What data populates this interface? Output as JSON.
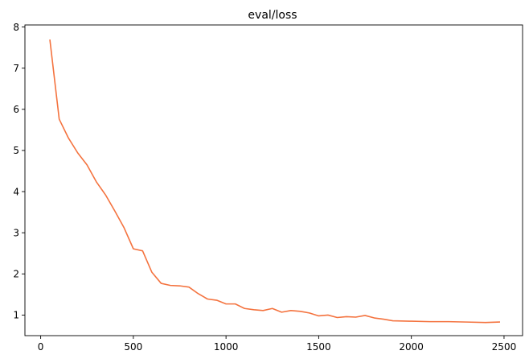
{
  "chart_data": {
    "type": "line",
    "title": "eval/loss",
    "xlabel": "",
    "ylabel": "",
    "xlim": [
      -85,
      2600
    ],
    "ylim": [
      0.5,
      8.05
    ],
    "x_ticks": [
      0,
      500,
      1000,
      1500,
      2000,
      2500
    ],
    "y_ticks": [
      1,
      2,
      3,
      4,
      5,
      6,
      7,
      8
    ],
    "grid": false,
    "legend": "none",
    "series": [
      {
        "color": "#f4733f",
        "x": [
          50,
          100,
          150,
          200,
          250,
          300,
          350,
          400,
          450,
          500,
          550,
          600,
          650,
          700,
          750,
          800,
          850,
          900,
          950,
          1000,
          1050,
          1100,
          1150,
          1200,
          1250,
          1300,
          1350,
          1400,
          1450,
          1500,
          1550,
          1600,
          1650,
          1700,
          1750,
          1800,
          1850,
          1900,
          2000,
          2100,
          2200,
          2300,
          2400,
          2475
        ],
        "y": [
          7.68,
          5.76,
          5.3,
          4.94,
          4.65,
          4.24,
          3.92,
          3.53,
          3.12,
          2.61,
          2.56,
          2.04,
          1.77,
          1.72,
          1.71,
          1.68,
          1.52,
          1.39,
          1.36,
          1.27,
          1.27,
          1.16,
          1.13,
          1.11,
          1.16,
          1.07,
          1.11,
          1.09,
          1.05,
          0.98,
          1.0,
          0.94,
          0.96,
          0.95,
          0.99,
          0.93,
          0.9,
          0.86,
          0.85,
          0.84,
          0.84,
          0.83,
          0.82,
          0.83
        ]
      }
    ]
  }
}
